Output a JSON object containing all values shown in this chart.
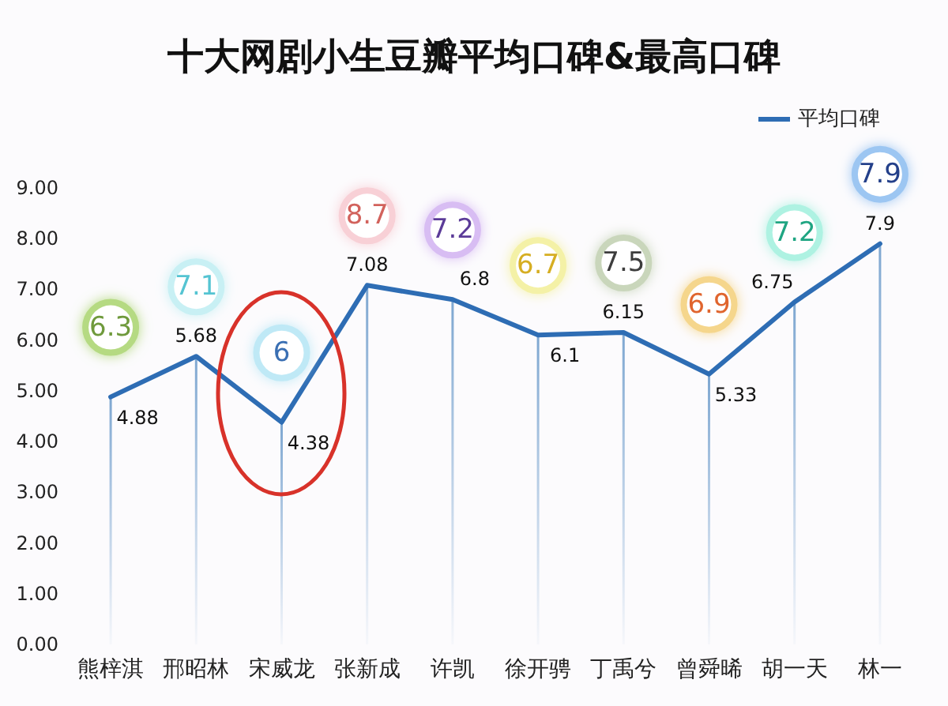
{
  "chart_data": {
    "type": "line",
    "title": "十大网剧小生豆瓣平均口碑&最高口碑",
    "categories": [
      "熊梓淇",
      "邢昭林",
      "宋威龙",
      "张新成",
      "许凯",
      "徐开骋",
      "丁禹兮",
      "曾舜晞",
      "胡一天",
      "林一"
    ],
    "series": [
      {
        "type": "bar",
        "color": "#7ea7d1",
        "values": [
          4.88,
          5.68,
          4.38,
          7.08,
          6.8,
          6.1,
          6.15,
          5.33,
          6.75,
          7.9
        ]
      },
      {
        "name": "平均口碑",
        "color": "#2e6db4",
        "values": [
          4.88,
          5.68,
          4.38,
          7.08,
          6.8,
          6.1,
          6.15,
          5.33,
          6.75,
          7.9
        ],
        "value_labels": [
          "4.88",
          "5.68",
          "4.38",
          "7.08",
          "6.8",
          "6.1",
          "6.15",
          "5.33",
          "6.75",
          "7.9"
        ]
      }
    ],
    "ylim": [
      0,
      9
    ],
    "yticks": [
      {
        "value": 0,
        "label": "0.00"
      },
      {
        "value": 1,
        "label": "1.00"
      },
      {
        "value": 2,
        "label": "2.00"
      },
      {
        "value": 3,
        "label": "3.00"
      },
      {
        "value": 4,
        "label": "4.00"
      },
      {
        "value": 5,
        "label": "5.00"
      },
      {
        "value": 6,
        "label": "6.00"
      },
      {
        "value": 7,
        "label": "7.00"
      },
      {
        "value": 8,
        "label": "8.00"
      },
      {
        "value": 9,
        "label": "9.00"
      }
    ],
    "annotations": [
      {
        "text": "6.3",
        "x": "熊梓淇"
      },
      {
        "text": "7.1",
        "x": "邢昭林"
      },
      {
        "text": "6",
        "x": "宋威龙"
      },
      {
        "text": "8.7",
        "x": "张新成"
      },
      {
        "text": "7.2",
        "x": "许凯"
      },
      {
        "text": "6.7",
        "x": "徐开骋"
      },
      {
        "text": "7.5",
        "x": "丁禹兮"
      },
      {
        "text": "6.9",
        "x": "曾舜晞"
      },
      {
        "text": "7.2",
        "x": "胡一天"
      },
      {
        "text": "7.9",
        "x": "林一"
      }
    ],
    "legend": "top right",
    "grid": false,
    "marker": "none"
  }
}
